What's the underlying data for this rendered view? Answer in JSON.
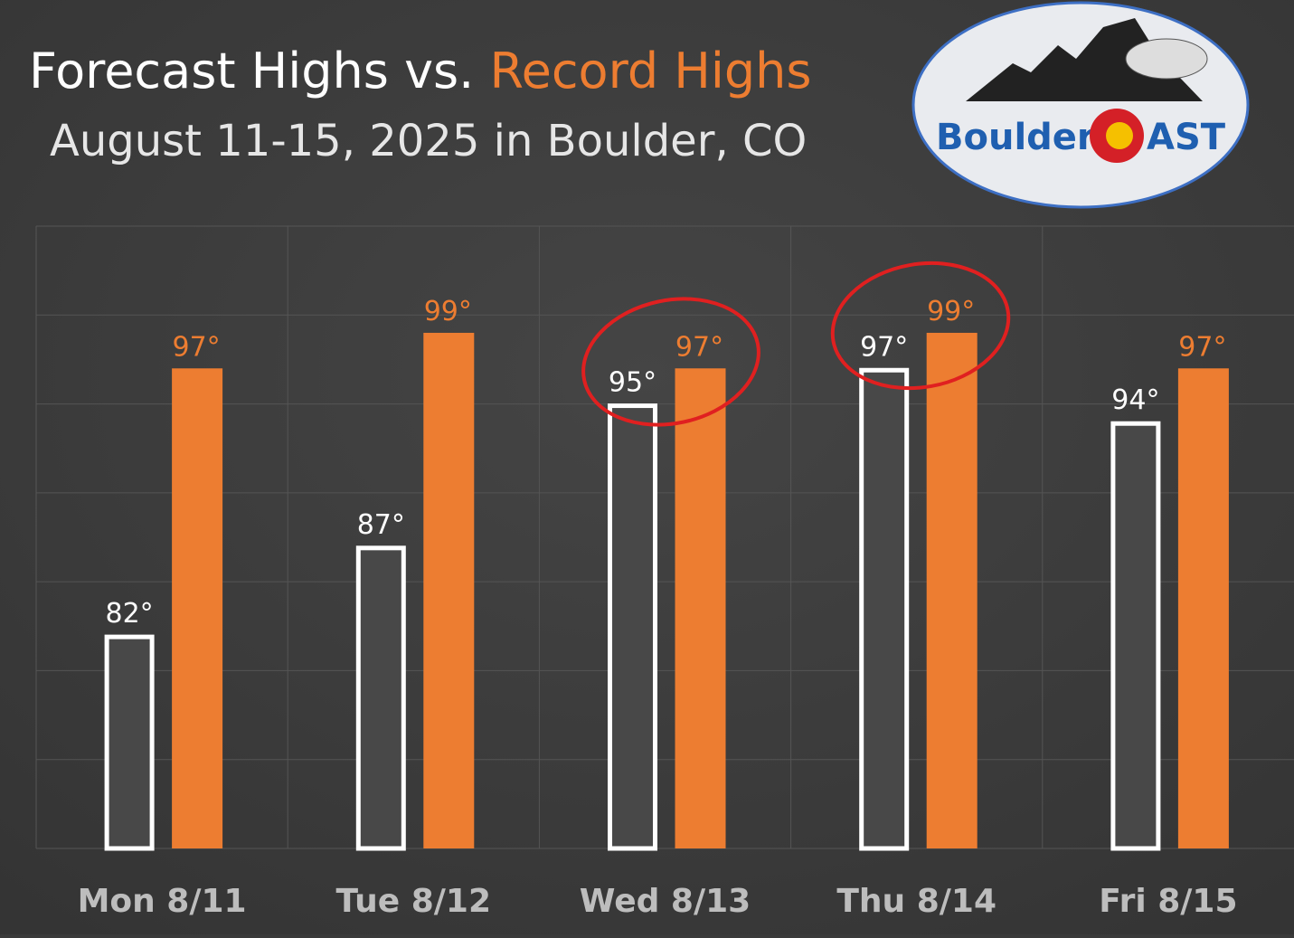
{
  "chart_data": {
    "type": "bar",
    "title_connector": "vs.",
    "subtitle": "August 11-15, 2025 in Boulder, CO",
    "logo_text": [
      "Boulder",
      "AST"
    ],
    "categories": [
      "Mon 8/11",
      "Tue 8/12",
      "Wed 8/13",
      "Thu 8/14",
      "Fri 8/15"
    ],
    "series": [
      {
        "name": "Forecast Highs",
        "color": "#ffffff",
        "values": [
          82,
          87,
          95,
          97,
          94
        ],
        "value_labels": [
          "82°",
          "87°",
          "95°",
          "97°",
          "94°"
        ]
      },
      {
        "name": "Record Highs",
        "color": "#ed7d31",
        "values": [
          97,
          99,
          97,
          99,
          97
        ],
        "value_labels": [
          "97°",
          "99°",
          "97°",
          "99°",
          "97°"
        ]
      }
    ],
    "ylim": [
      70,
      105
    ],
    "yticks": [
      70,
      75,
      80,
      85,
      90,
      95,
      100,
      105
    ],
    "grid": true
  }
}
